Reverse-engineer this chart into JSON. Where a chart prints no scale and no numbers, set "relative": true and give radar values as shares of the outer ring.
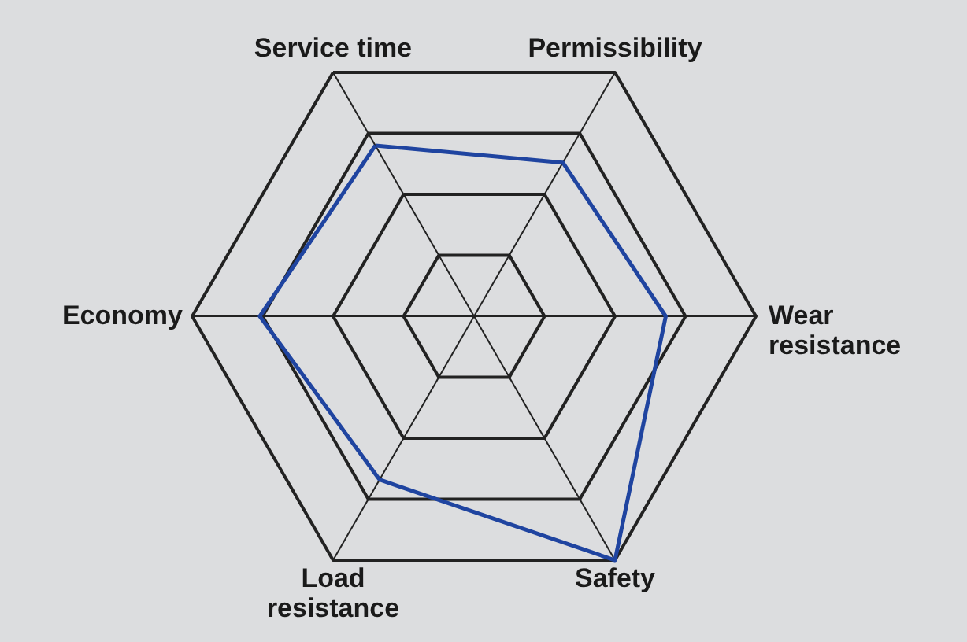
{
  "chart_data": {
    "type": "radar",
    "relative": true,
    "grid": true,
    "categories": [
      "Service time",
      "Permissibility",
      "Wear resistance",
      "Safety",
      "Load resistance",
      "Economy"
    ],
    "series": [
      {
        "color": "#1f44a0",
        "values": [
          0.7,
          0.63,
          0.68,
          1.0,
          0.67,
          0.76
        ]
      }
    ]
  }
}
